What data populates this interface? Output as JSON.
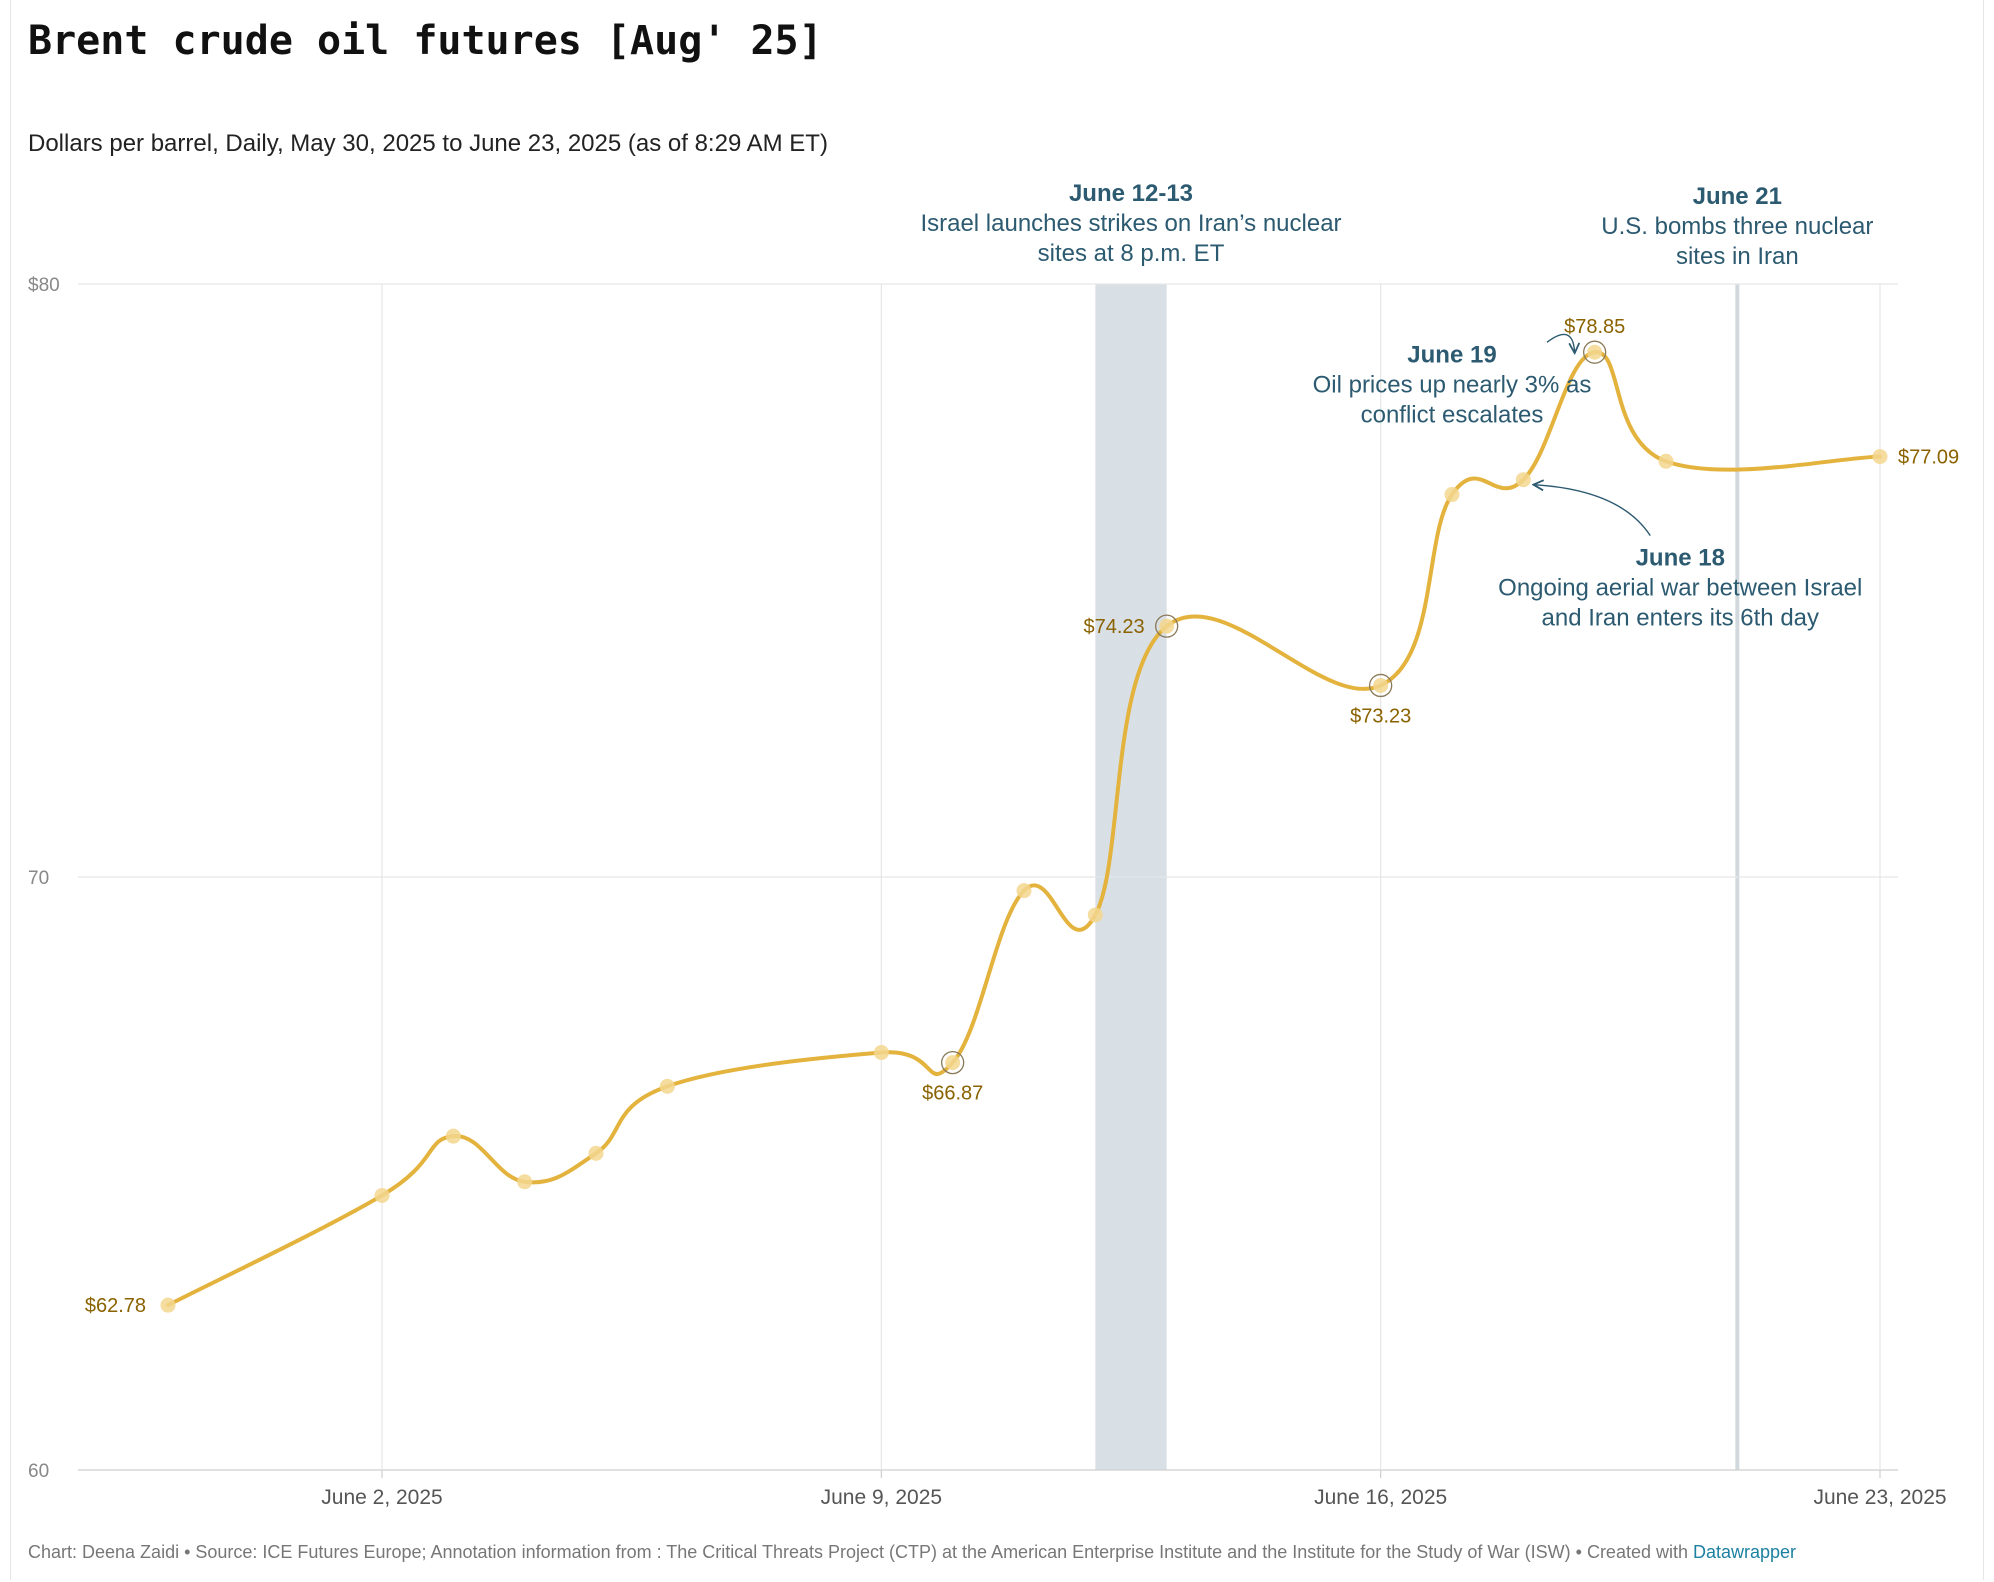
{
  "title": "Brent crude oil futures [Aug' 25]",
  "subtitle": "Dollars per barrel, Daily, May 30, 2025 to June 23, 2025 (as of 8:29 AM ET)",
  "footer": {
    "text": "Chart: Deena Zaidi • Source: ICE Futures Europe; Annotation information from : The Critical Threats Project (CTP) at the American Enterprise Institute and the Institute for the Study of War (ISW)  • Created with ",
    "link": "Datawrapper"
  },
  "colors": {
    "line": "#e3b33d",
    "marker": "#f3d68e",
    "value_label": "#8a6200",
    "annotation": "#2c5a70",
    "band": "#d9e0e5",
    "grid": "#e6e6e6",
    "axis_text": "#888888"
  },
  "chart_data": {
    "type": "line",
    "title": "Brent crude oil futures [Aug' 25]",
    "xlabel": "",
    "ylabel": "",
    "x": [
      "2025-05-30",
      "2025-06-02",
      "2025-06-03",
      "2025-06-04",
      "2025-06-05",
      "2025-06-06",
      "2025-06-09",
      "2025-06-10",
      "2025-06-11",
      "2025-06-12",
      "2025-06-13",
      "2025-06-16",
      "2025-06-17",
      "2025-06-18",
      "2025-06-19",
      "2025-06-20",
      "2025-06-23"
    ],
    "series": [
      {
        "values": [
          62.78,
          64.63,
          65.63,
          64.86,
          65.34,
          66.47,
          67.04,
          66.87,
          69.77,
          69.36,
          74.23,
          73.23,
          76.45,
          76.7,
          78.85,
          77.01,
          77.09
        ]
      }
    ],
    "ylim": [
      60,
      80
    ],
    "xlim": [
      "2025-05-30",
      "2025-06-23"
    ],
    "y_ticks": [
      {
        "value": 80,
        "label": "$80"
      },
      {
        "value": 70,
        "label": "70"
      },
      {
        "value": 60,
        "label": "60"
      }
    ],
    "x_ticks": [
      {
        "value": "2025-06-02",
        "label": "June 2, 2025"
      },
      {
        "value": "2025-06-09",
        "label": "June 9, 2025"
      },
      {
        "value": "2025-06-16",
        "label": "June 16, 2025"
      },
      {
        "value": "2025-06-23",
        "label": "June 23, 2025"
      }
    ],
    "grid": true,
    "value_labels": [
      {
        "x": "2025-05-30",
        "y": 62.78,
        "text": "$62.78",
        "pos": "left",
        "ring": false
      },
      {
        "x": "2025-06-10",
        "y": 66.87,
        "text": "$66.87",
        "pos": "below",
        "ring": true
      },
      {
        "x": "2025-06-13",
        "y": 74.23,
        "text": "$74.23",
        "pos": "left",
        "ring": true
      },
      {
        "x": "2025-06-16",
        "y": 73.23,
        "text": "$73.23",
        "pos": "below",
        "ring": true
      },
      {
        "x": "2025-06-19",
        "y": 78.85,
        "text": "$78.85",
        "pos": "above",
        "ring": true
      },
      {
        "x": "2025-06-23",
        "y": 77.09,
        "text": "$77.09",
        "pos": "right",
        "ring": false
      }
    ],
    "highlight_ranges": [
      {
        "from": "2025-06-12",
        "to": "2025-06-13",
        "kind": "band"
      },
      {
        "from": "2025-06-21",
        "to": "2025-06-21",
        "kind": "line"
      }
    ],
    "annotations": [
      {
        "id": "jun12",
        "heading": "June 12-13",
        "lines": [
          "Israel launches strikes on Iran’s nuclear",
          "sites at 8 p.m. ET"
        ],
        "x": "2025-06-12.5",
        "y": 81.4,
        "arrow_to": null
      },
      {
        "id": "jun21",
        "heading": "June 21",
        "lines": [
          "U.S. bombs three nuclear",
          "sites in Iran"
        ],
        "x": "2025-06-21",
        "y": 81.35,
        "arrow_to": null
      },
      {
        "id": "jun19",
        "heading": "June 19",
        "lines": [
          "Oil prices up nearly 3% as",
          "conflict escalates"
        ],
        "x": "2025-06-17",
        "y": 78.68,
        "arrow_to": {
          "x": "2025-06-19",
          "y": 78.85
        }
      },
      {
        "id": "jun18",
        "heading": "June 18",
        "lines": [
          "Ongoing aerial war between Israel",
          "and Iran enters its 6th day"
        ],
        "x": "2025-06-20.2",
        "y": 75.25,
        "arrow_to": {
          "x": "2025-06-18",
          "y": 76.7
        }
      }
    ]
  }
}
